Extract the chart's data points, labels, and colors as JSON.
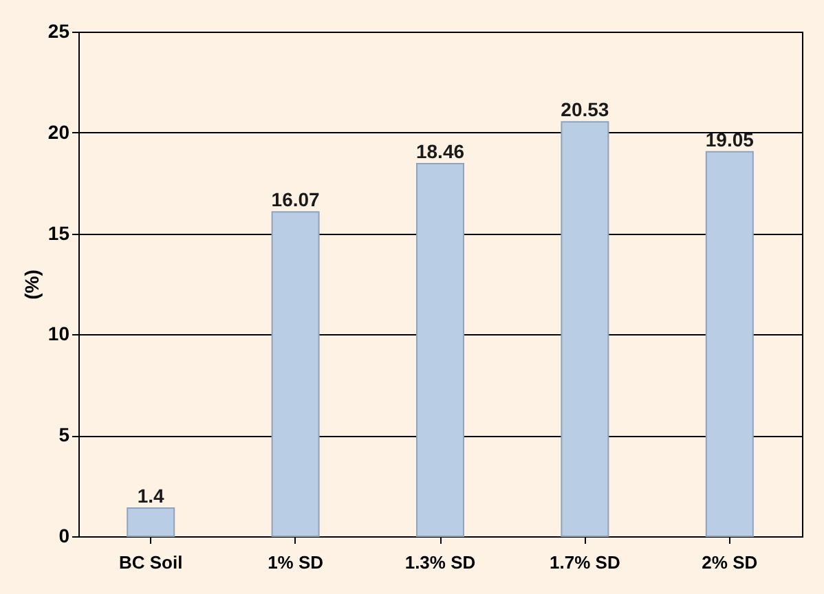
{
  "chart_data": {
    "type": "bar",
    "ylabel": "(%)",
    "categories": [
      "BC Soil",
      "1% SD",
      "1.3% SD",
      "1.7% SD",
      "2% SD"
    ],
    "values": [
      1.4,
      16.07,
      18.46,
      20.53,
      19.05
    ],
    "color": "#b9cde5",
    "ylim": [
      0,
      25
    ],
    "yticks": [
      0,
      5,
      10,
      15,
      20,
      25
    ],
    "grid": "y",
    "data_labels": true
  }
}
